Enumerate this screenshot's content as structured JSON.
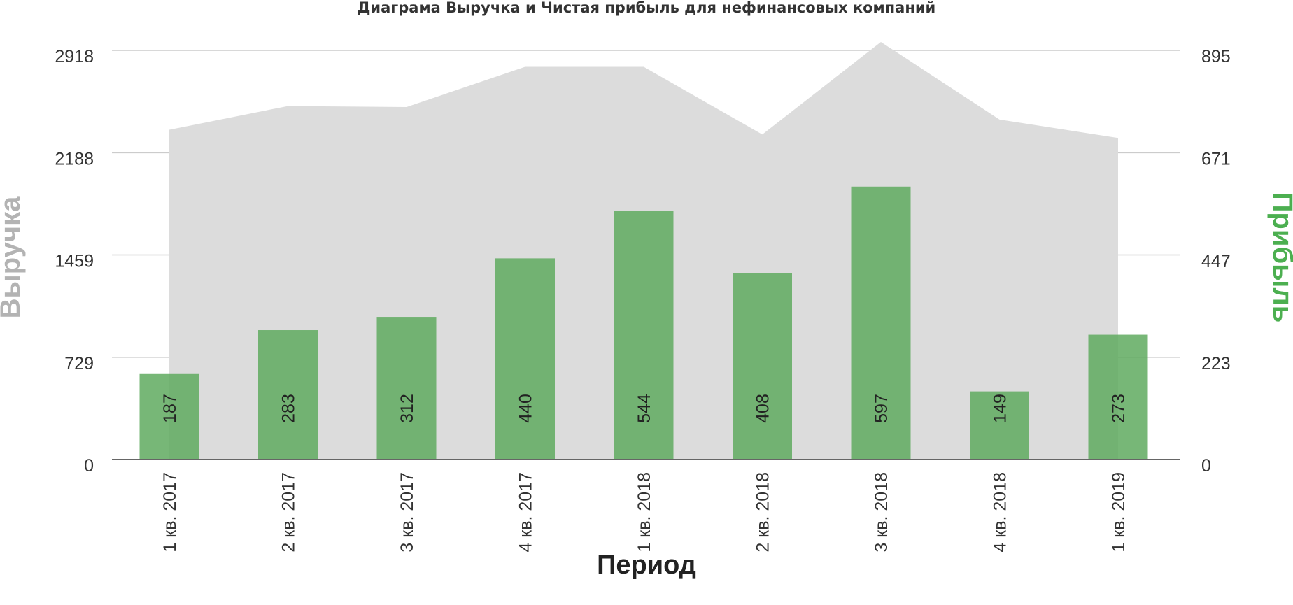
{
  "chart_data": {
    "type": "bar",
    "title": "Диаграма Выручка и Чистая прибыль для нефинансовых компаний",
    "xlabel": "Период",
    "ylabel_left": "Выручка",
    "ylabel_right": "Прибыль",
    "categories": [
      "1 кв. 2017",
      "2 кв. 2017",
      "3 кв. 2017",
      "4 кв. 2017",
      "1 кв. 2018",
      "2 кв. 2018",
      "3 кв. 2018",
      "4 кв. 2018",
      "1 кв. 2019"
    ],
    "left_axis": {
      "ticks": [
        "0",
        "729",
        "1459",
        "2188",
        "2918"
      ],
      "ylim": [
        0,
        2918
      ]
    },
    "right_axis": {
      "ticks": [
        "0",
        "223",
        "447",
        "671",
        "895"
      ],
      "ylim": [
        0,
        895
      ]
    },
    "grid": true,
    "series": [
      {
        "name": "Выручка",
        "type": "area",
        "axis": "left",
        "color": "#dcdcdc",
        "values": [
          2352,
          2521,
          2514,
          2801,
          2801,
          2318,
          2978,
          2425,
          2293
        ]
      },
      {
        "name": "Прибыль",
        "type": "bar",
        "axis": "right",
        "color": "#5faa5f",
        "values": [
          187,
          283,
          312,
          440,
          544,
          408,
          597,
          149,
          273
        ],
        "labels": [
          "187",
          "283",
          "312",
          "440",
          "544",
          "408",
          "597",
          "149",
          "273"
        ]
      }
    ],
    "colors": {
      "left_title": "#b3b3b3",
      "right_title": "#4caf50",
      "grid": "#cccccc"
    }
  }
}
